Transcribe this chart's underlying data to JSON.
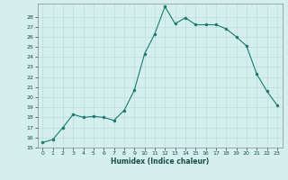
{
  "x": [
    0,
    1,
    2,
    3,
    4,
    5,
    6,
    7,
    8,
    9,
    10,
    11,
    12,
    13,
    14,
    15,
    16,
    17,
    18,
    19,
    20,
    21,
    22,
    23
  ],
  "y": [
    15.5,
    15.8,
    17.0,
    18.3,
    18.0,
    18.1,
    18.0,
    17.7,
    18.7,
    20.7,
    24.3,
    26.3,
    29.0,
    27.3,
    27.9,
    27.2,
    27.2,
    27.2,
    26.8,
    26.0,
    25.1,
    22.3,
    20.6,
    19.2
  ],
  "line_color": "#1a7a6e",
  "marker_color": "#1a7a6e",
  "bg_color": "#d4efee",
  "grid_color": "#b8d8d6",
  "xlabel": "Humidex (Indice chaleur)",
  "ylim_min": 15,
  "ylim_max": 29,
  "xlim_min": -0.5,
  "xlim_max": 23.5,
  "yticks": [
    15,
    16,
    17,
    18,
    19,
    20,
    21,
    22,
    23,
    24,
    25,
    26,
    27,
    28
  ],
  "xticks": [
    0,
    1,
    2,
    3,
    4,
    5,
    6,
    7,
    8,
    9,
    10,
    11,
    12,
    13,
    14,
    15,
    16,
    17,
    18,
    19,
    20,
    21,
    22,
    23
  ]
}
